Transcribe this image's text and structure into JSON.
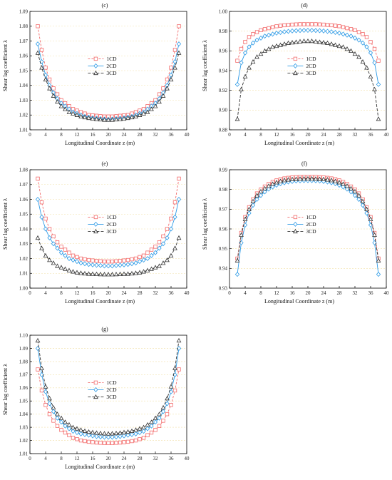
{
  "colors": {
    "1CD": "#f26a6a",
    "2CD": "#2f9be6",
    "3CD": "#333333",
    "grid": "#f2e0a8"
  },
  "chart_data": [
    {
      "type": "line",
      "label": "(c)",
      "xlabel": "Longitudinal Coordinate z (m)",
      "ylabel": "Shear lag coefficient λ",
      "xlim": [
        0,
        40
      ],
      "ylim": [
        1.01,
        1.09
      ],
      "grid": "horizontal dashed",
      "legend": "center",
      "xticks": [
        "0",
        "4",
        "8",
        "12",
        "16",
        "20",
        "24",
        "28",
        "32",
        "36",
        "40"
      ],
      "yticks": [
        "1.01",
        "1.02",
        "1.03",
        "1.04",
        "1.05",
        "1.06",
        "1.07",
        "1.08",
        "1.09"
      ],
      "x": [
        2,
        3,
        4,
        5,
        6,
        7,
        8,
        9,
        10,
        11,
        12,
        13,
        14,
        15,
        16,
        17,
        18,
        19,
        20,
        21,
        22,
        23,
        24,
        25,
        26,
        27,
        28,
        29,
        30,
        31,
        32,
        33,
        34,
        35,
        36,
        37,
        38
      ],
      "series": [
        {
          "name": "1CD",
          "marker": "square",
          "dash": "3,2",
          "values": [
            1.08,
            1.064,
            1.052,
            1.044,
            1.038,
            1.034,
            1.03,
            1.028,
            1.026,
            1.024,
            1.023,
            1.022,
            1.021,
            1.02,
            1.0198,
            1.0195,
            1.0192,
            1.019,
            1.019,
            1.019,
            1.0192,
            1.0195,
            1.0198,
            1.02,
            1.021,
            1.022,
            1.023,
            1.024,
            1.026,
            1.028,
            1.03,
            1.034,
            1.038,
            1.044,
            1.052,
            1.064,
            1.08
          ]
        },
        {
          "name": "2CD",
          "marker": "diamond",
          "dash": "",
          "values": [
            1.068,
            1.056,
            1.047,
            1.04,
            1.035,
            1.031,
            1.028,
            1.026,
            1.024,
            1.022,
            1.021,
            1.02,
            1.019,
            1.0185,
            1.018,
            1.0178,
            1.0175,
            1.0172,
            1.017,
            1.0172,
            1.0175,
            1.0178,
            1.018,
            1.0185,
            1.019,
            1.02,
            1.021,
            1.022,
            1.024,
            1.026,
            1.028,
            1.031,
            1.035,
            1.04,
            1.047,
            1.056,
            1.068
          ]
        },
        {
          "name": "3CD",
          "marker": "triangle",
          "dash": "4,2",
          "values": [
            1.062,
            1.052,
            1.044,
            1.038,
            1.033,
            1.029,
            1.026,
            1.024,
            1.022,
            1.021,
            1.02,
            1.019,
            1.0185,
            1.018,
            1.0175,
            1.0172,
            1.017,
            1.0168,
            1.0168,
            1.0168,
            1.017,
            1.0172,
            1.0175,
            1.018,
            1.0185,
            1.019,
            1.02,
            1.021,
            1.022,
            1.024,
            1.026,
            1.029,
            1.033,
            1.038,
            1.044,
            1.052,
            1.062
          ]
        }
      ]
    },
    {
      "type": "line",
      "label": "(d)",
      "xlabel": "Longitudinal Coordinate z (m)",
      "ylabel": "Shear lag coefficient λ",
      "xlim": [
        0,
        40
      ],
      "ylim": [
        0.88,
        1.0
      ],
      "grid": "horizontal dashed",
      "legend": "center",
      "xticks": [
        "0",
        "4",
        "8",
        "12",
        "16",
        "20",
        "24",
        "28",
        "32",
        "36",
        "40"
      ],
      "yticks": [
        "0.88",
        "0.90",
        "0.92",
        "0.94",
        "0.96",
        "0.98",
        "1.00"
      ],
      "x": [
        2,
        3,
        4,
        5,
        6,
        7,
        8,
        9,
        10,
        11,
        12,
        13,
        14,
        15,
        16,
        17,
        18,
        19,
        20,
        21,
        22,
        23,
        24,
        25,
        26,
        27,
        28,
        29,
        30,
        31,
        32,
        33,
        34,
        35,
        36,
        37,
        38
      ],
      "series": [
        {
          "name": "1CD",
          "marker": "square",
          "dash": "3,2",
          "values": [
            0.95,
            0.962,
            0.969,
            0.974,
            0.977,
            0.979,
            0.981,
            0.982,
            0.983,
            0.984,
            0.985,
            0.9855,
            0.986,
            0.9863,
            0.9866,
            0.9868,
            0.987,
            0.987,
            0.987,
            0.987,
            0.987,
            0.9868,
            0.9866,
            0.9863,
            0.986,
            0.9855,
            0.985,
            0.984,
            0.983,
            0.982,
            0.981,
            0.979,
            0.977,
            0.974,
            0.969,
            0.962,
            0.95
          ]
        },
        {
          "name": "2CD",
          "marker": "diamond",
          "dash": "",
          "values": [
            0.926,
            0.948,
            0.958,
            0.964,
            0.968,
            0.971,
            0.973,
            0.975,
            0.976,
            0.977,
            0.978,
            0.9787,
            0.9793,
            0.9798,
            0.9802,
            0.9805,
            0.9807,
            0.9808,
            0.9808,
            0.9808,
            0.9807,
            0.9805,
            0.9802,
            0.9798,
            0.9793,
            0.9787,
            0.978,
            0.977,
            0.976,
            0.975,
            0.973,
            0.971,
            0.968,
            0.964,
            0.958,
            0.948,
            0.926
          ]
        },
        {
          "name": "3CD",
          "marker": "triangle",
          "dash": "4,2",
          "values": [
            0.891,
            0.921,
            0.934,
            0.943,
            0.949,
            0.954,
            0.957,
            0.96,
            0.962,
            0.964,
            0.965,
            0.966,
            0.967,
            0.968,
            0.9685,
            0.969,
            0.9695,
            0.97,
            0.97,
            0.97,
            0.9695,
            0.969,
            0.9685,
            0.968,
            0.967,
            0.966,
            0.965,
            0.964,
            0.962,
            0.96,
            0.957,
            0.954,
            0.949,
            0.943,
            0.934,
            0.921,
            0.891
          ]
        }
      ]
    },
    {
      "type": "line",
      "label": "(e)",
      "xlabel": "Longitudinal Coordinate z (m)",
      "ylabel": "Shear lag coefficient λ",
      "xlim": [
        0,
        40
      ],
      "ylim": [
        1.0,
        1.08
      ],
      "grid": "horizontal dashed",
      "legend": "center",
      "xticks": [
        "0",
        "4",
        "8",
        "12",
        "16",
        "20",
        "24",
        "28",
        "32",
        "36",
        "40"
      ],
      "yticks": [
        "1.00",
        "1.01",
        "1.02",
        "1.03",
        "1.04",
        "1.05",
        "1.06",
        "1.07",
        "1.08"
      ],
      "x": [
        2,
        3,
        4,
        5,
        6,
        7,
        8,
        9,
        10,
        11,
        12,
        13,
        14,
        15,
        16,
        17,
        18,
        19,
        20,
        21,
        22,
        23,
        24,
        25,
        26,
        27,
        28,
        29,
        30,
        31,
        32,
        33,
        34,
        35,
        36,
        37,
        38
      ],
      "series": [
        {
          "name": "1CD",
          "marker": "square",
          "dash": "3,2",
          "values": [
            1.074,
            1.058,
            1.047,
            1.04,
            1.035,
            1.031,
            1.028,
            1.026,
            1.024,
            1.022,
            1.021,
            1.02,
            1.0195,
            1.019,
            1.0187,
            1.0184,
            1.0182,
            1.018,
            1.018,
            1.018,
            1.0182,
            1.0184,
            1.0187,
            1.019,
            1.0195,
            1.02,
            1.021,
            1.022,
            1.024,
            1.026,
            1.028,
            1.031,
            1.035,
            1.04,
            1.047,
            1.058,
            1.074
          ]
        },
        {
          "name": "2CD",
          "marker": "diamond",
          "dash": "",
          "values": [
            1.06,
            1.048,
            1.04,
            1.034,
            1.03,
            1.027,
            1.024,
            1.022,
            1.02,
            1.019,
            1.018,
            1.017,
            1.0165,
            1.016,
            1.0157,
            1.0155,
            1.0153,
            1.015,
            1.015,
            1.015,
            1.0153,
            1.0155,
            1.0157,
            1.016,
            1.0165,
            1.017,
            1.018,
            1.019,
            1.02,
            1.022,
            1.024,
            1.027,
            1.03,
            1.034,
            1.04,
            1.048,
            1.06
          ]
        },
        {
          "name": "3CD",
          "marker": "triangle",
          "dash": "4,2",
          "values": [
            1.034,
            1.027,
            1.022,
            1.019,
            1.017,
            1.015,
            1.014,
            1.013,
            1.012,
            1.0112,
            1.0106,
            1.0102,
            1.0099,
            1.0097,
            1.0096,
            1.0095,
            1.0094,
            1.0093,
            1.0093,
            1.0093,
            1.0094,
            1.0095,
            1.0096,
            1.0097,
            1.0099,
            1.0102,
            1.0106,
            1.0112,
            1.012,
            1.013,
            1.014,
            1.015,
            1.017,
            1.019,
            1.022,
            1.027,
            1.034
          ]
        }
      ]
    },
    {
      "type": "line",
      "label": "(f)",
      "xlabel": "Longitudinal Coordinate z (m)",
      "ylabel": "Shear lag coefficient λ",
      "xlim": [
        0,
        40
      ],
      "ylim": [
        0.93,
        0.99
      ],
      "grid": "horizontal dashed",
      "legend": "center",
      "xticks": [
        "0",
        "4",
        "8",
        "12",
        "16",
        "20",
        "24",
        "28",
        "32",
        "36",
        "40"
      ],
      "yticks": [
        "0.93",
        "0.94",
        "0.95",
        "0.96",
        "0.97",
        "0.98",
        "0.99"
      ],
      "x": [
        2,
        3,
        4,
        5,
        6,
        7,
        8,
        9,
        10,
        11,
        12,
        13,
        14,
        15,
        16,
        17,
        18,
        19,
        20,
        21,
        22,
        23,
        24,
        25,
        26,
        27,
        28,
        29,
        30,
        31,
        32,
        33,
        34,
        35,
        36,
        37,
        38
      ],
      "series": [
        {
          "name": "1CD",
          "marker": "square",
          "dash": "3,2",
          "values": [
            0.945,
            0.958,
            0.966,
            0.971,
            0.975,
            0.978,
            0.98,
            0.9815,
            0.9828,
            0.9838,
            0.9846,
            0.9852,
            0.9856,
            0.9859,
            0.9861,
            0.9862,
            0.9863,
            0.9863,
            0.9863,
            0.9863,
            0.9863,
            0.9862,
            0.9861,
            0.9859,
            0.9856,
            0.9852,
            0.9846,
            0.9838,
            0.9828,
            0.9815,
            0.98,
            0.978,
            0.975,
            0.971,
            0.966,
            0.958,
            0.945
          ]
        },
        {
          "name": "2CD",
          "marker": "diamond",
          "dash": "",
          "values": [
            0.937,
            0.953,
            0.962,
            0.968,
            0.972,
            0.975,
            0.977,
            0.9788,
            0.9802,
            0.9813,
            0.9822,
            0.9829,
            0.9834,
            0.9838,
            0.9841,
            0.9843,
            0.9844,
            0.9845,
            0.9845,
            0.9845,
            0.9844,
            0.9843,
            0.9841,
            0.9838,
            0.9834,
            0.9829,
            0.9822,
            0.9813,
            0.9802,
            0.9788,
            0.977,
            0.975,
            0.972,
            0.968,
            0.962,
            0.953,
            0.937
          ]
        },
        {
          "name": "3CD",
          "marker": "triangle",
          "dash": "4,2",
          "values": [
            0.944,
            0.957,
            0.965,
            0.97,
            0.974,
            0.977,
            0.979,
            0.9805,
            0.9818,
            0.9828,
            0.9836,
            0.9842,
            0.9847,
            0.985,
            0.9852,
            0.9853,
            0.9854,
            0.9855,
            0.9855,
            0.9855,
            0.9854,
            0.9853,
            0.9852,
            0.985,
            0.9847,
            0.9842,
            0.9836,
            0.9828,
            0.9818,
            0.9805,
            0.979,
            0.977,
            0.974,
            0.97,
            0.965,
            0.957,
            0.944
          ]
        }
      ]
    },
    {
      "type": "line",
      "label": "(g)",
      "xlabel": "Longitudinal Coordinate z (m)",
      "ylabel": "Shear lag coefficient λ",
      "xlim": [
        0,
        40
      ],
      "ylim": [
        1.01,
        1.1
      ],
      "grid": "horizontal dashed",
      "legend": "center",
      "xticks": [
        "0",
        "4",
        "8",
        "12",
        "16",
        "20",
        "24",
        "28",
        "32",
        "36",
        "40"
      ],
      "yticks": [
        "1.01",
        "1.02",
        "1.03",
        "1.04",
        "1.05",
        "1.06",
        "1.07",
        "1.08",
        "1.09",
        "1.10"
      ],
      "x": [
        2,
        3,
        4,
        5,
        6,
        7,
        8,
        9,
        10,
        11,
        12,
        13,
        14,
        15,
        16,
        17,
        18,
        19,
        20,
        21,
        22,
        23,
        24,
        25,
        26,
        27,
        28,
        29,
        30,
        31,
        32,
        33,
        34,
        35,
        36,
        37,
        38
      ],
      "series": [
        {
          "name": "1CD",
          "marker": "square",
          "dash": "3,2",
          "values": [
            1.074,
            1.058,
            1.047,
            1.04,
            1.035,
            1.031,
            1.028,
            1.026,
            1.024,
            1.022,
            1.021,
            1.02,
            1.0195,
            1.019,
            1.0187,
            1.0184,
            1.0182,
            1.018,
            1.018,
            1.018,
            1.0182,
            1.0184,
            1.0187,
            1.019,
            1.0195,
            1.02,
            1.021,
            1.022,
            1.024,
            1.026,
            1.028,
            1.031,
            1.035,
            1.04,
            1.047,
            1.058,
            1.074
          ]
        },
        {
          "name": "2CD",
          "marker": "diamond",
          "dash": "",
          "values": [
            1.09,
            1.07,
            1.057,
            1.048,
            1.042,
            1.037,
            1.034,
            1.031,
            1.029,
            1.027,
            1.026,
            1.025,
            1.0245,
            1.024,
            1.0235,
            1.023,
            1.0227,
            1.0225,
            1.0225,
            1.0225,
            1.0227,
            1.023,
            1.0235,
            1.024,
            1.0245,
            1.025,
            1.026,
            1.027,
            1.029,
            1.031,
            1.034,
            1.037,
            1.042,
            1.048,
            1.057,
            1.07,
            1.09
          ]
        },
        {
          "name": "3CD",
          "marker": "triangle",
          "dash": "4,2",
          "values": [
            1.096,
            1.075,
            1.061,
            1.052,
            1.045,
            1.04,
            1.037,
            1.034,
            1.032,
            1.03,
            1.029,
            1.028,
            1.0272,
            1.0266,
            1.0262,
            1.0258,
            1.0255,
            1.0253,
            1.0252,
            1.0253,
            1.0255,
            1.0258,
            1.0262,
            1.0266,
            1.0272,
            1.028,
            1.029,
            1.03,
            1.032,
            1.034,
            1.037,
            1.04,
            1.045,
            1.052,
            1.061,
            1.075,
            1.096
          ]
        }
      ]
    }
  ]
}
